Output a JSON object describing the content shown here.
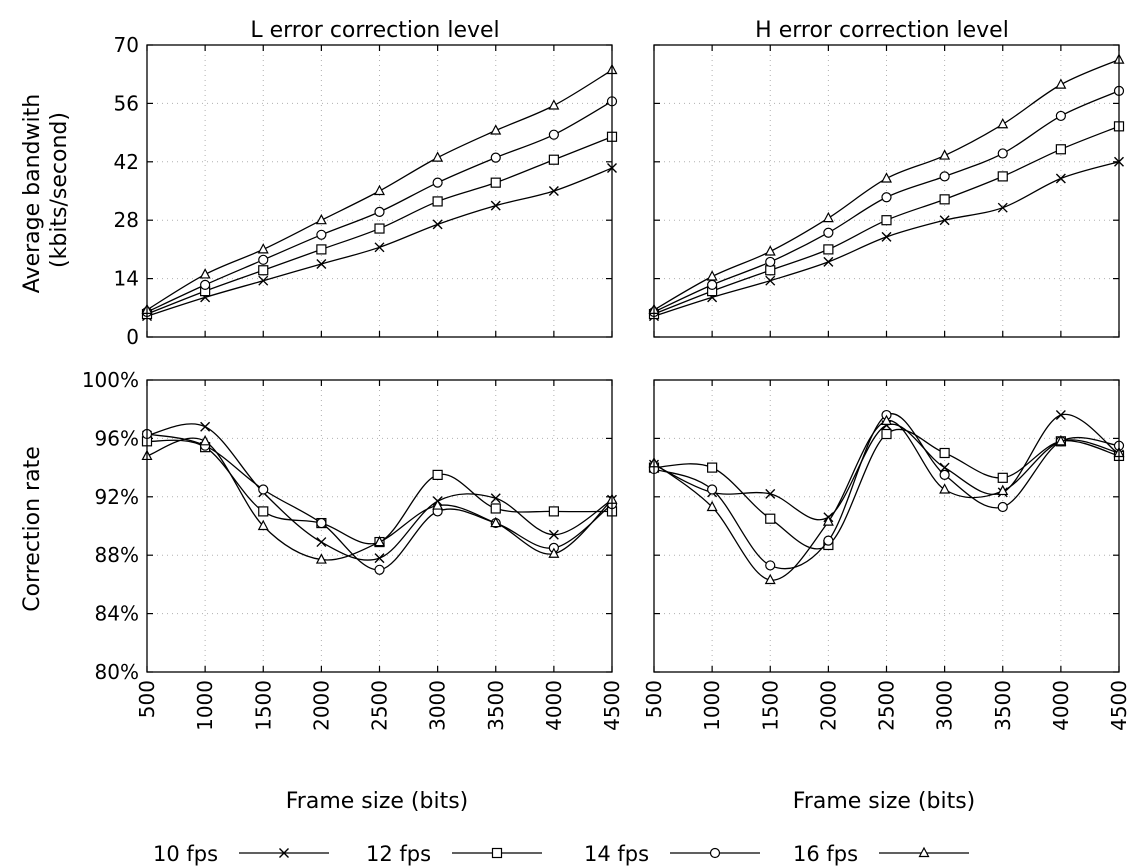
{
  "chart_data": [
    {
      "type": "line",
      "title": "L error correction level",
      "ylabel": "Average bandwith\n(kbits/second)",
      "xlabel": "",
      "x": [
        500,
        1000,
        1500,
        2000,
        2500,
        3000,
        3500,
        4000,
        4500
      ],
      "x_tick_labels": [
        "500",
        "1000",
        "1500",
        "2000",
        "2500",
        "3000",
        "3500",
        "4000",
        "4500"
      ],
      "xlim": [
        500,
        4500
      ],
      "ylim": [
        0,
        70
      ],
      "y_ticks": [
        0,
        14,
        28,
        42,
        56,
        70
      ],
      "y_tick_labels": [
        "0",
        "14",
        "28",
        "42",
        "56",
        "70"
      ],
      "grid": true,
      "series": [
        {
          "name": "10 fps",
          "marker": "x",
          "values": [
            5,
            9.5,
            13.5,
            17.5,
            21.5,
            27,
            31.5,
            35,
            40.5
          ]
        },
        {
          "name": "12 fps",
          "marker": "square",
          "values": [
            5.5,
            11,
            16,
            21,
            26,
            32.5,
            37,
            42.5,
            48
          ]
        },
        {
          "name": "14 fps",
          "marker": "circle",
          "values": [
            6,
            12.5,
            18.5,
            24.5,
            30,
            37,
            43,
            48.5,
            56.5
          ]
        },
        {
          "name": "16 fps",
          "marker": "triangle",
          "values": [
            6.5,
            15,
            21,
            28,
            35,
            43,
            49.5,
            55.5,
            64
          ]
        }
      ]
    },
    {
      "type": "line",
      "title": "H error correction level",
      "ylabel": "",
      "xlabel": "",
      "x": [
        500,
        1000,
        1500,
        2000,
        2500,
        3000,
        3500,
        4000,
        4500
      ],
      "x_tick_labels": [
        "500",
        "1000",
        "1500",
        "2000",
        "2500",
        "3000",
        "3500",
        "4000",
        "4500"
      ],
      "xlim": [
        500,
        4500
      ],
      "ylim": [
        0,
        70
      ],
      "y_ticks": [
        0,
        14,
        28,
        42,
        56,
        70
      ],
      "y_tick_labels": [],
      "grid": true,
      "series": [
        {
          "name": "10 fps",
          "marker": "x",
          "values": [
            5,
            9.5,
            13.5,
            18,
            24,
            28,
            31,
            38,
            42
          ]
        },
        {
          "name": "12 fps",
          "marker": "square",
          "values": [
            5.5,
            11,
            16,
            21,
            28,
            33,
            38.5,
            45,
            50.5
          ]
        },
        {
          "name": "14 fps",
          "marker": "circle",
          "values": [
            6,
            12.5,
            18,
            25,
            33.5,
            38.5,
            44,
            53,
            59
          ]
        },
        {
          "name": "16 fps",
          "marker": "triangle",
          "values": [
            6.5,
            14.5,
            20.5,
            28.5,
            38,
            43.5,
            51,
            60.5,
            66.5
          ]
        }
      ]
    },
    {
      "type": "line",
      "title": "",
      "ylabel": "Correction rate",
      "xlabel": "Frame size (bits)",
      "x": [
        500,
        1000,
        1500,
        2000,
        2500,
        3000,
        3500,
        4000,
        4500
      ],
      "x_tick_labels": [
        "500",
        "1000",
        "1500",
        "2000",
        "2500",
        "3000",
        "3500",
        "4000",
        "4500"
      ],
      "xlim": [
        500,
        4500
      ],
      "ylim": [
        80,
        100
      ],
      "y_ticks": [
        80,
        84,
        88,
        92,
        96,
        100
      ],
      "y_tick_labels": [
        "80%",
        "84%",
        "88%",
        "92%",
        "96%",
        "100%"
      ],
      "grid": true,
      "series": [
        {
          "name": "10 fps",
          "marker": "x",
          "values": [
            96.2,
            96.8,
            92.3,
            88.9,
            87.8,
            91.7,
            91.9,
            89.4,
            91.8
          ]
        },
        {
          "name": "12 fps",
          "marker": "square",
          "values": [
            95.8,
            95.4,
            91.0,
            90.2,
            88.9,
            93.5,
            91.2,
            91.0,
            91.0
          ]
        },
        {
          "name": "14 fps",
          "marker": "circle",
          "values": [
            96.3,
            95.5,
            92.5,
            90.2,
            87.0,
            91.0,
            90.2,
            88.5,
            91.5
          ]
        },
        {
          "name": "16 fps",
          "marker": "triangle",
          "values": [
            94.8,
            95.8,
            90.0,
            87.7,
            88.9,
            91.4,
            90.2,
            88.1,
            91.8
          ]
        }
      ]
    },
    {
      "type": "line",
      "title": "",
      "ylabel": "",
      "xlabel": "Frame size (bits)",
      "x": [
        500,
        1000,
        1500,
        2000,
        2500,
        3000,
        3500,
        4000,
        4500
      ],
      "x_tick_labels": [
        "500",
        "1000",
        "1500",
        "2000",
        "2500",
        "3000",
        "3500",
        "4000",
        "4500"
      ],
      "xlim": [
        500,
        4500
      ],
      "ylim": [
        80,
        100
      ],
      "y_ticks": [
        80,
        84,
        88,
        92,
        96,
        100
      ],
      "y_tick_labels": [],
      "grid": true,
      "series": [
        {
          "name": "10 fps",
          "marker": "x",
          "values": [
            94.2,
            92.3,
            92.2,
            90.6,
            96.9,
            94.0,
            92.3,
            97.6,
            94.9
          ]
        },
        {
          "name": "12 fps",
          "marker": "square",
          "values": [
            94.0,
            94.0,
            90.5,
            88.7,
            96.3,
            95.0,
            93.3,
            95.8,
            94.8
          ]
        },
        {
          "name": "14 fps",
          "marker": "circle",
          "values": [
            93.9,
            92.5,
            87.3,
            89.0,
            97.6,
            93.5,
            91.3,
            95.8,
            95.5
          ]
        },
        {
          "name": "16 fps",
          "marker": "triangle",
          "values": [
            94.3,
            91.3,
            86.3,
            90.3,
            97.2,
            92.5,
            92.4,
            95.8,
            95.0
          ]
        }
      ]
    }
  ],
  "legend": {
    "placement": "bottom",
    "entries": [
      {
        "label": "10 fps",
        "marker": "x"
      },
      {
        "label": "12 fps",
        "marker": "square"
      },
      {
        "label": "14 fps",
        "marker": "circle"
      },
      {
        "label": "16 fps",
        "marker": "triangle"
      }
    ]
  }
}
